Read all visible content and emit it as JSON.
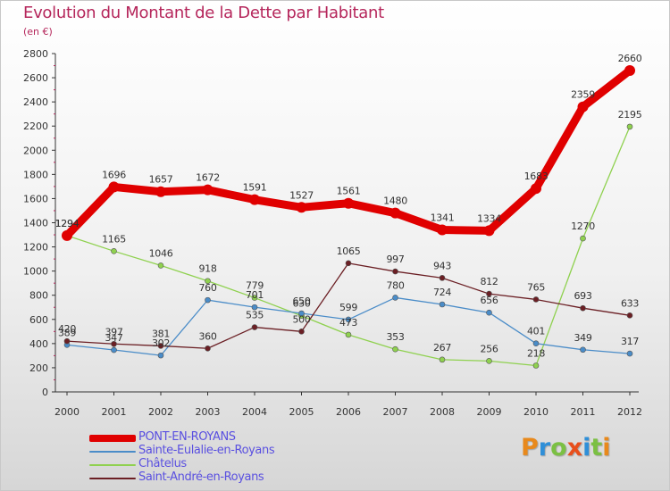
{
  "header": {
    "title": "Evolution du Montant de la Dette par Habitant",
    "unit": "(en €)"
  },
  "logo": {
    "letters": [
      "P",
      "r",
      "o",
      "x",
      "i",
      "t",
      "i"
    ],
    "colors": [
      "#e8891c",
      "#2f8fd8",
      "#7bc043",
      "#e84f1c",
      "#2f8fd8",
      "#7bc043",
      "#e8891c"
    ]
  },
  "chart_data": {
    "type": "line",
    "x": [
      "2000",
      "2001",
      "2002",
      "2003",
      "2004",
      "2005",
      "2006",
      "2007",
      "2008",
      "2009",
      "2010",
      "2011",
      "2012"
    ],
    "ylim": [
      0,
      2800
    ],
    "yticks": [
      0,
      200,
      400,
      600,
      800,
      1000,
      1200,
      1400,
      1600,
      1800,
      2000,
      2200,
      2400,
      2600,
      2800
    ],
    "grid": false,
    "legend_position": "bottom-left",
    "series": [
      {
        "name": "PONT-EN-ROYANS",
        "color": "#e00000",
        "values": [
          1294,
          1696,
          1657,
          1672,
          1591,
          1527,
          1561,
          1480,
          1341,
          1334,
          1683,
          2359,
          2660
        ]
      },
      {
        "name": "Sainte-Eulalie-en-Royans",
        "color": "#4a8cc8",
        "values": [
          389,
          347,
          302,
          760,
          701,
          650,
          599,
          780,
          724,
          656,
          401,
          349,
          317
        ]
      },
      {
        "name": "Châtelus",
        "color": "#8fd14f",
        "values": [
          1294,
          1165,
          1046,
          918,
          779,
          630,
          473,
          353,
          267,
          256,
          218,
          1270,
          2195
        ]
      },
      {
        "name": "Saint-André-en-Royans",
        "color": "#6b1f24",
        "values": [
          420,
          397,
          381,
          360,
          535,
          500,
          1065,
          997,
          943,
          812,
          765,
          693,
          633
        ]
      }
    ]
  }
}
